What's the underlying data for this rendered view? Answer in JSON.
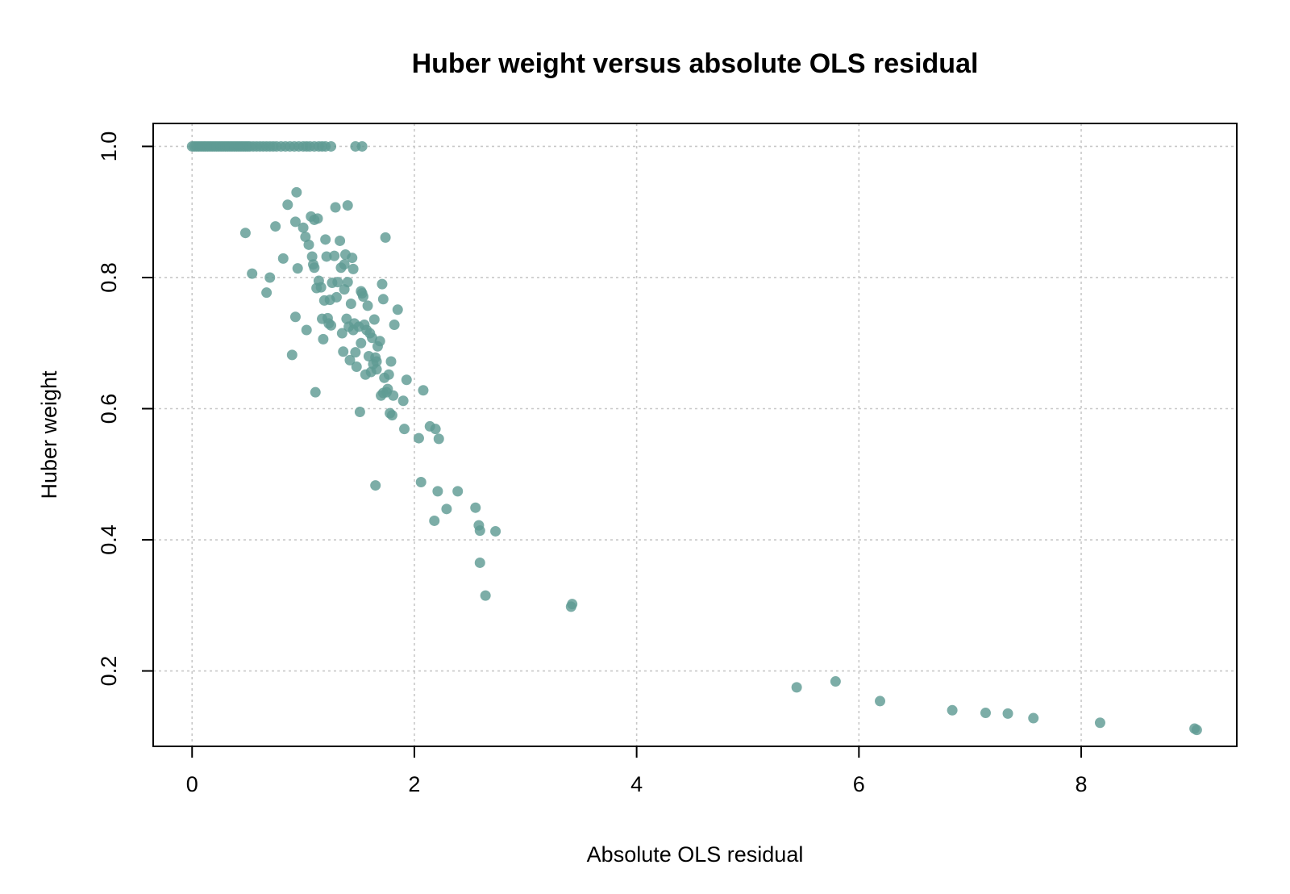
{
  "chart_data": {
    "type": "scatter",
    "title": "Huber weight versus absolute OLS residual",
    "xlabel": "Absolute OLS residual",
    "ylabel": "Huber weight",
    "xlim": [
      -0.35,
      9.4
    ],
    "ylim": [
      0.085,
      1.035
    ],
    "xticks": [
      0,
      2,
      4,
      6,
      8
    ],
    "yticks": [
      0.2,
      0.4,
      0.6,
      0.8,
      1.0
    ],
    "xtick_labels": [
      "0",
      "2",
      "4",
      "6",
      "8"
    ],
    "ytick_labels": [
      "0.2",
      "0.4",
      "0.6",
      "0.8",
      "1.0"
    ],
    "grid": true,
    "point_color": "#5f9b94",
    "series": [
      {
        "points": [
          [
            0.0,
            1.0
          ],
          [
            0.02,
            1.0
          ],
          [
            0.04,
            1.0
          ],
          [
            0.06,
            1.0
          ],
          [
            0.08,
            1.0
          ],
          [
            0.1,
            1.0
          ],
          [
            0.12,
            1.0
          ],
          [
            0.14,
            1.0
          ],
          [
            0.16,
            1.0
          ],
          [
            0.18,
            1.0
          ],
          [
            0.2,
            1.0
          ],
          [
            0.22,
            1.0
          ],
          [
            0.24,
            1.0
          ],
          [
            0.26,
            1.0
          ],
          [
            0.28,
            1.0
          ],
          [
            0.3,
            1.0
          ],
          [
            0.32,
            1.0
          ],
          [
            0.34,
            1.0
          ],
          [
            0.36,
            1.0
          ],
          [
            0.38,
            1.0
          ],
          [
            0.4,
            1.0
          ],
          [
            0.42,
            1.0
          ],
          [
            0.44,
            1.0
          ],
          [
            0.46,
            1.0
          ],
          [
            0.48,
            1.0
          ],
          [
            0.5,
            1.0
          ],
          [
            0.52,
            1.0
          ],
          [
            0.55,
            1.0
          ],
          [
            0.58,
            1.0
          ],
          [
            0.61,
            1.0
          ],
          [
            0.64,
            1.0
          ],
          [
            0.67,
            1.0
          ],
          [
            0.7,
            1.0
          ],
          [
            0.73,
            1.0
          ],
          [
            0.76,
            1.0
          ],
          [
            0.8,
            1.0
          ],
          [
            0.84,
            1.0
          ],
          [
            0.88,
            1.0
          ],
          [
            0.92,
            1.0
          ],
          [
            0.96,
            1.0
          ],
          [
            1.0,
            1.0
          ],
          [
            1.03,
            1.0
          ],
          [
            1.06,
            1.0
          ],
          [
            1.1,
            1.0
          ],
          [
            1.14,
            1.0
          ],
          [
            1.17,
            1.0
          ],
          [
            1.2,
            1.0
          ],
          [
            1.25,
            1.0
          ],
          [
            1.47,
            1.0
          ],
          [
            1.53,
            1.0
          ],
          [
            0.48,
            0.868
          ],
          [
            0.54,
            0.806
          ],
          [
            0.67,
            0.777
          ],
          [
            0.7,
            0.8
          ],
          [
            0.75,
            0.878
          ],
          [
            0.82,
            0.829
          ],
          [
            0.86,
            0.911
          ],
          [
            0.9,
            0.682
          ],
          [
            0.93,
            0.74
          ],
          [
            0.93,
            0.885
          ],
          [
            0.94,
            0.93
          ],
          [
            0.95,
            0.814
          ],
          [
            1.0,
            0.876
          ],
          [
            1.02,
            0.862
          ],
          [
            1.03,
            0.72
          ],
          [
            1.05,
            0.85
          ],
          [
            1.07,
            0.893
          ],
          [
            1.08,
            0.832
          ],
          [
            1.09,
            0.82
          ],
          [
            1.1,
            0.815
          ],
          [
            1.1,
            0.888
          ],
          [
            1.11,
            0.625
          ],
          [
            1.12,
            0.784
          ],
          [
            1.13,
            0.89
          ],
          [
            1.14,
            0.795
          ],
          [
            1.16,
            0.785
          ],
          [
            1.17,
            0.737
          ],
          [
            1.18,
            0.706
          ],
          [
            1.19,
            0.765
          ],
          [
            1.2,
            0.858
          ],
          [
            1.21,
            0.832
          ],
          [
            1.22,
            0.738
          ],
          [
            1.23,
            0.73
          ],
          [
            1.24,
            0.766
          ],
          [
            1.25,
            0.727
          ],
          [
            1.26,
            0.792
          ],
          [
            1.28,
            0.833
          ],
          [
            1.29,
            0.907
          ],
          [
            1.3,
            0.77
          ],
          [
            1.31,
            0.793
          ],
          [
            1.33,
            0.856
          ],
          [
            1.34,
            0.815
          ],
          [
            1.35,
            0.715
          ],
          [
            1.36,
            0.687
          ],
          [
            1.37,
            0.82
          ],
          [
            1.37,
            0.782
          ],
          [
            1.38,
            0.835
          ],
          [
            1.39,
            0.737
          ],
          [
            1.4,
            0.91
          ],
          [
            1.4,
            0.793
          ],
          [
            1.41,
            0.725
          ],
          [
            1.42,
            0.674
          ],
          [
            1.43,
            0.76
          ],
          [
            1.44,
            0.83
          ],
          [
            1.45,
            0.813
          ],
          [
            1.45,
            0.72
          ],
          [
            1.46,
            0.73
          ],
          [
            1.47,
            0.686
          ],
          [
            1.48,
            0.664
          ],
          [
            1.5,
            0.725
          ],
          [
            1.51,
            0.595
          ],
          [
            1.52,
            0.7
          ],
          [
            1.52,
            0.779
          ],
          [
            1.53,
            0.776
          ],
          [
            1.54,
            0.771
          ],
          [
            1.55,
            0.728
          ],
          [
            1.56,
            0.652
          ],
          [
            1.57,
            0.72
          ],
          [
            1.58,
            0.757
          ],
          [
            1.59,
            0.68
          ],
          [
            1.6,
            0.715
          ],
          [
            1.61,
            0.656
          ],
          [
            1.62,
            0.708
          ],
          [
            1.63,
            0.668
          ],
          [
            1.64,
            0.736
          ],
          [
            1.65,
            0.678
          ],
          [
            1.65,
            0.483
          ],
          [
            1.66,
            0.672
          ],
          [
            1.66,
            0.66
          ],
          [
            1.67,
            0.695
          ],
          [
            1.69,
            0.703
          ],
          [
            1.7,
            0.62
          ],
          [
            1.71,
            0.79
          ],
          [
            1.72,
            0.767
          ],
          [
            1.72,
            0.624
          ],
          [
            1.73,
            0.647
          ],
          [
            1.74,
            0.861
          ],
          [
            1.75,
            0.625
          ],
          [
            1.76,
            0.63
          ],
          [
            1.77,
            0.652
          ],
          [
            1.78,
            0.593
          ],
          [
            1.79,
            0.672
          ],
          [
            1.8,
            0.59
          ],
          [
            1.81,
            0.62
          ],
          [
            1.82,
            0.728
          ],
          [
            1.85,
            0.751
          ],
          [
            1.9,
            0.612
          ],
          [
            1.91,
            0.569
          ],
          [
            1.93,
            0.644
          ],
          [
            2.04,
            0.555
          ],
          [
            2.06,
            0.488
          ],
          [
            2.08,
            0.628
          ],
          [
            2.14,
            0.573
          ],
          [
            2.18,
            0.429
          ],
          [
            2.19,
            0.569
          ],
          [
            2.21,
            0.474
          ],
          [
            2.22,
            0.554
          ],
          [
            2.29,
            0.447
          ],
          [
            2.39,
            0.474
          ],
          [
            2.55,
            0.449
          ],
          [
            2.58,
            0.422
          ],
          [
            2.59,
            0.414
          ],
          [
            2.59,
            0.365
          ],
          [
            2.64,
            0.315
          ],
          [
            2.73,
            0.413
          ],
          [
            3.41,
            0.298
          ],
          [
            3.42,
            0.302
          ],
          [
            5.44,
            0.175
          ],
          [
            5.79,
            0.184
          ],
          [
            6.19,
            0.154
          ],
          [
            6.84,
            0.14
          ],
          [
            7.14,
            0.136
          ],
          [
            7.34,
            0.135
          ],
          [
            7.57,
            0.128
          ],
          [
            8.17,
            0.121
          ],
          [
            9.02,
            0.112
          ],
          [
            9.04,
            0.11
          ]
        ]
      }
    ]
  }
}
